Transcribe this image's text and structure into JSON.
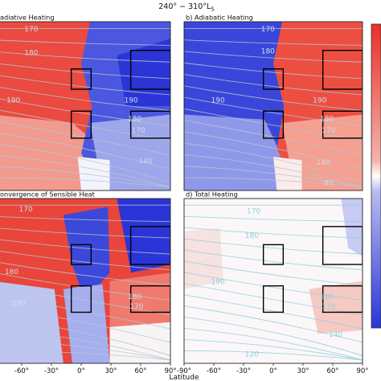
{
  "figure": {
    "suptitle": "240° − 310°L",
    "suptitle_sub": "S",
    "xlabel": "Latitude",
    "xticks": [
      "-90°",
      "-60°",
      "-30°",
      "0°",
      "30°",
      "60°",
      "90°"
    ],
    "colors": {
      "warm": "#e8302a",
      "cool": "#2b35d6",
      "contour": "#b4c8d2",
      "contour_alt": "#8fd0dc",
      "box": "#000000"
    }
  },
  "chart_data": [
    {
      "type": "heatmap",
      "title": "adiative Heating",
      "x": [
        -90,
        90
      ],
      "pattern": "radiative",
      "contour_labels": [
        "170",
        "180",
        "190",
        "190",
        "180",
        "170",
        "140"
      ],
      "boxes": [
        {
          "lat": [
            -10,
            10
          ]
        },
        {
          "lat": [
            -10,
            10
          ]
        },
        {
          "lat": [
            50,
            90
          ]
        },
        {
          "lat": [
            50,
            90
          ]
        }
      ]
    },
    {
      "type": "heatmap",
      "title": "b) Adiabatic Heating",
      "x": [
        -90,
        90
      ],
      "pattern": "adiabatic",
      "contour_labels": [
        "170",
        "180",
        "190",
        "190",
        "180",
        "170",
        "140",
        "80"
      ],
      "boxes": [
        {
          "lat": [
            -10,
            10
          ]
        },
        {
          "lat": [
            -10,
            10
          ]
        },
        {
          "lat": [
            50,
            90
          ]
        },
        {
          "lat": [
            50,
            90
          ]
        }
      ]
    },
    {
      "type": "heatmap",
      "title": "onvergence of Sensible Heat",
      "x": [
        -90,
        90
      ],
      "pattern": "sensible",
      "contour_labels": [
        "170",
        "180",
        "190",
        "180",
        "170"
      ],
      "boxes": [
        {
          "lat": [
            -10,
            10
          ]
        },
        {
          "lat": [
            -10,
            10
          ]
        },
        {
          "lat": [
            50,
            90
          ]
        },
        {
          "lat": [
            50,
            90
          ]
        }
      ]
    },
    {
      "type": "heatmap",
      "title": "d) Total Heating",
      "x": [
        -90,
        90
      ],
      "pattern": "total",
      "contour_labels": [
        "170",
        "180",
        "190",
        "180",
        "170",
        "140",
        "120"
      ],
      "boxes": [
        {
          "lat": [
            -10,
            10
          ]
        },
        {
          "lat": [
            -10,
            10
          ]
        },
        {
          "lat": [
            50,
            90
          ]
        },
        {
          "lat": [
            50,
            90
          ]
        }
      ]
    }
  ]
}
